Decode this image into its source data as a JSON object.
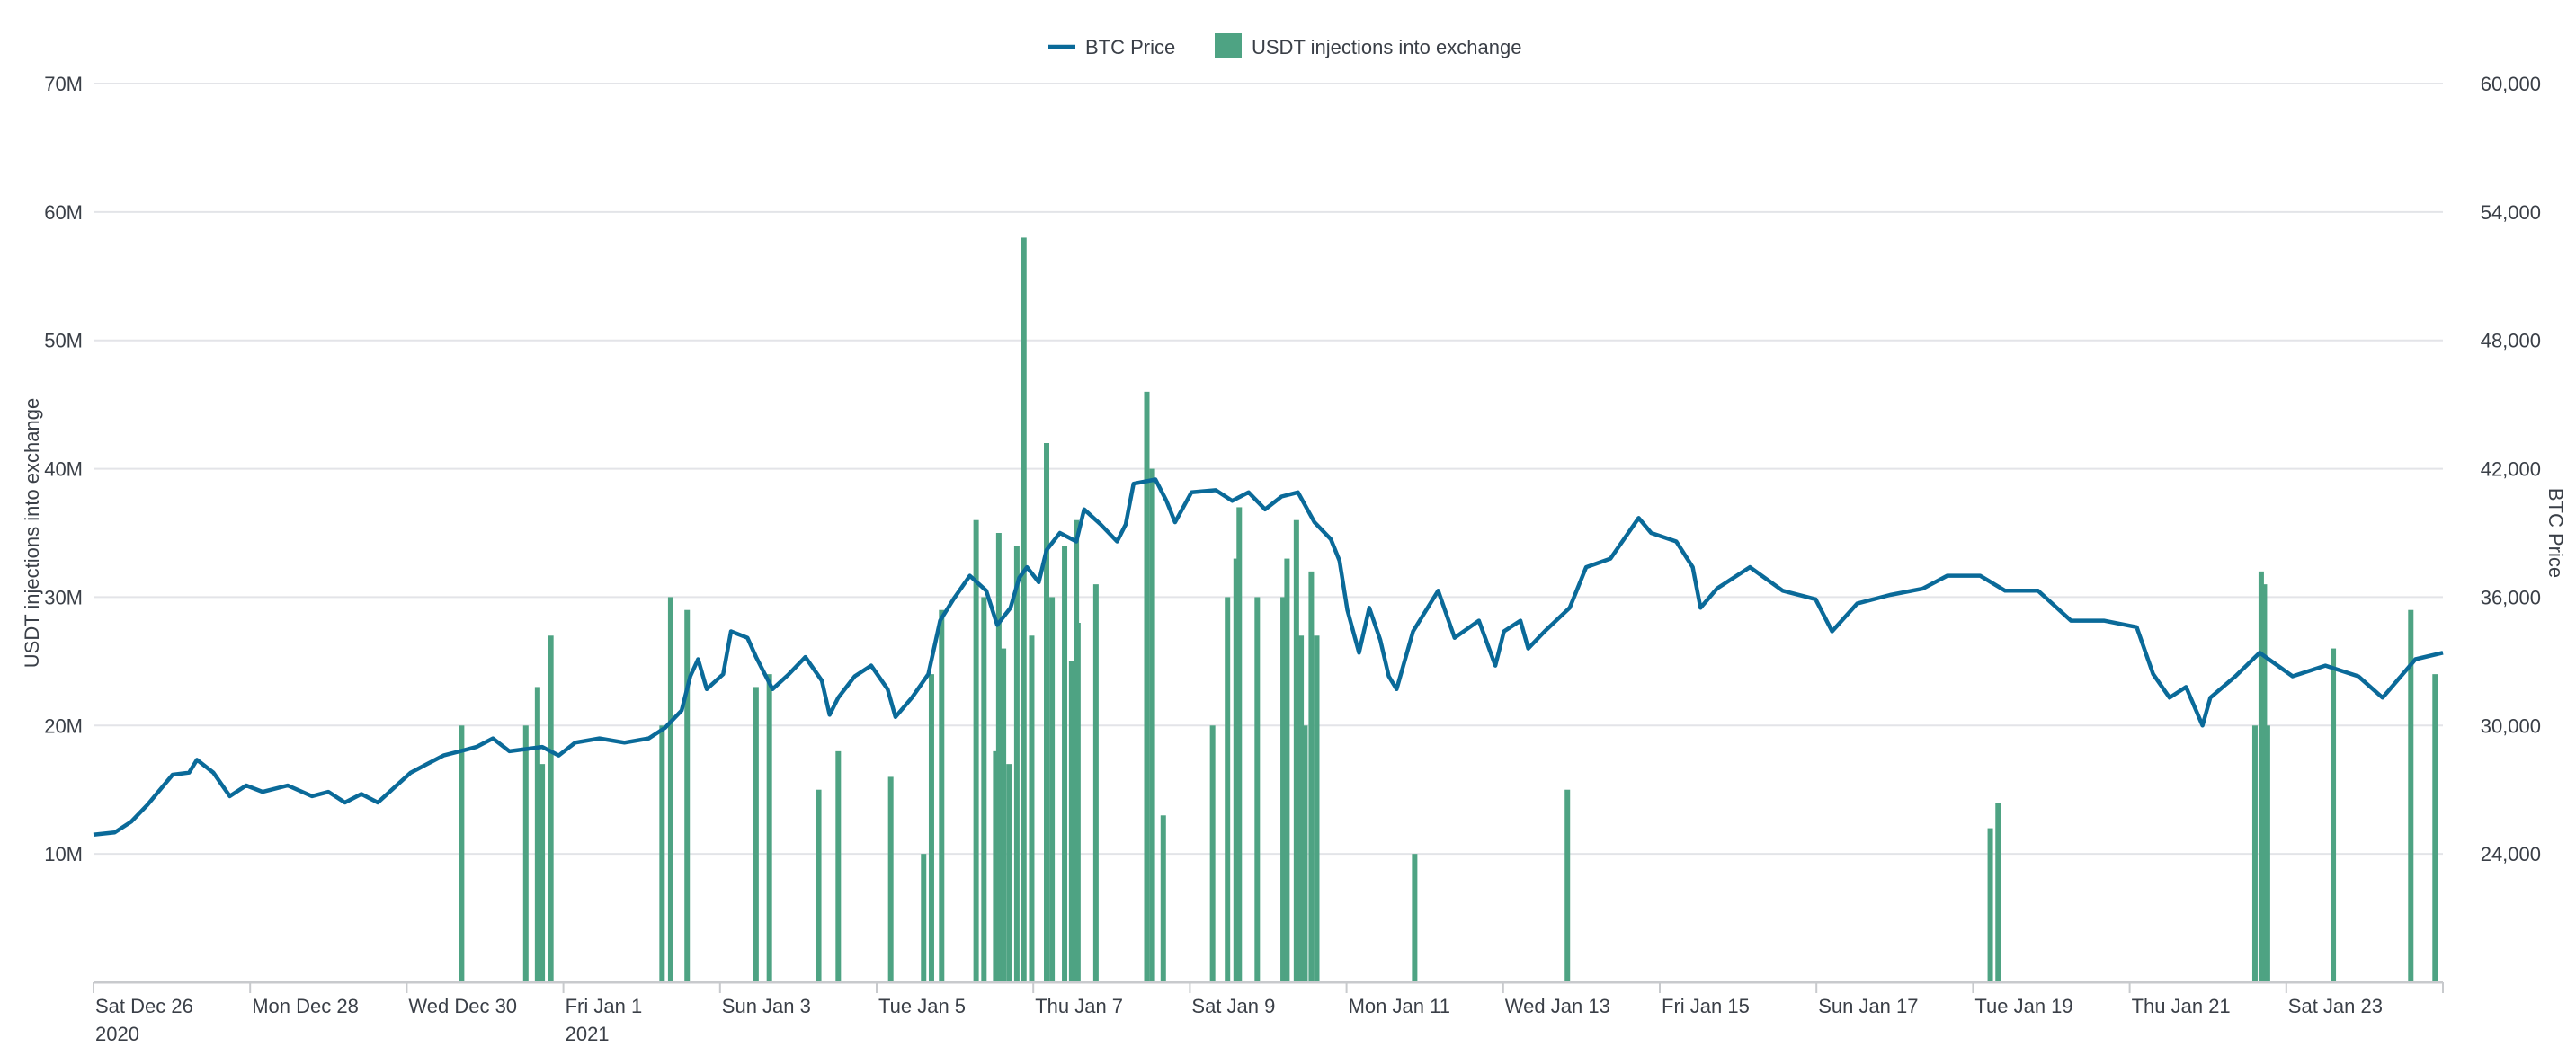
{
  "chart_data": {
    "type": "bar+line",
    "legend": {
      "placement": "top-center",
      "items": [
        {
          "name": "BTC Price",
          "kind": "line",
          "color": "#0a6a99"
        },
        {
          "name": "USDT injections into exchange",
          "kind": "bar",
          "color": "#4ea383"
        }
      ]
    },
    "left_axis": {
      "label": "USDT injections into exchange",
      "range": [
        0,
        70000000
      ],
      "ticks": [
        {
          "v": 10000000,
          "t": "10M"
        },
        {
          "v": 20000000,
          "t": "20M"
        },
        {
          "v": 30000000,
          "t": "30M"
        },
        {
          "v": 40000000,
          "t": "40M"
        },
        {
          "v": 50000000,
          "t": "50M"
        },
        {
          "v": 60000000,
          "t": "60M"
        },
        {
          "v": 70000000,
          "t": "70M"
        }
      ]
    },
    "right_axis": {
      "label": "BTC Price",
      "range": [
        18000,
        60000
      ],
      "ticks": [
        {
          "v": 24000,
          "t": "24,000"
        },
        {
          "v": 30000,
          "t": "30,000"
        },
        {
          "v": 36000,
          "t": "36,000"
        },
        {
          "v": 42000,
          "t": "42,000"
        },
        {
          "v": 48000,
          "t": "48,000"
        },
        {
          "v": 54000,
          "t": "54,000"
        },
        {
          "v": 60000,
          "t": "60,000"
        }
      ]
    },
    "x_axis": {
      "unit": "days since Sat Dec 26 2020",
      "range": [
        0,
        30
      ],
      "ticks": [
        {
          "d": 0,
          "t": "Sat Dec 26",
          "t2": "2020"
        },
        {
          "d": 2,
          "t": "Mon Dec 28"
        },
        {
          "d": 4,
          "t": "Wed Dec 30"
        },
        {
          "d": 6,
          "t": "Fri Jan 1",
          "t2": "2021"
        },
        {
          "d": 8,
          "t": "Sun Jan 3"
        },
        {
          "d": 10,
          "t": "Tue Jan 5"
        },
        {
          "d": 12,
          "t": "Thu Jan 7"
        },
        {
          "d": 14,
          "t": "Sat Jan 9"
        },
        {
          "d": 16,
          "t": "Mon Jan 11"
        },
        {
          "d": 18,
          "t": "Wed Jan 13"
        },
        {
          "d": 20,
          "t": "Fri Jan 15"
        },
        {
          "d": 22,
          "t": "Sun Jan 17"
        },
        {
          "d": 24,
          "t": "Tue Jan 19"
        },
        {
          "d": 26,
          "t": "Thu Jan 21"
        },
        {
          "d": 28,
          "t": "Sat Jan 23"
        },
        {
          "d": 30,
          "t": ""
        }
      ]
    },
    "grid": true,
    "btc_price": [
      [
        0,
        24900
      ],
      [
        0.27,
        25000
      ],
      [
        0.48,
        25500
      ],
      [
        0.69,
        26300
      ],
      [
        1.01,
        27700
      ],
      [
        1.22,
        27800
      ],
      [
        1.32,
        28400
      ],
      [
        1.53,
        27800
      ],
      [
        1.74,
        26700
      ],
      [
        1.95,
        27200
      ],
      [
        2.16,
        26900
      ],
      [
        2.48,
        27200
      ],
      [
        2.79,
        26700
      ],
      [
        3.0,
        26900
      ],
      [
        3.21,
        26400
      ],
      [
        3.42,
        26800
      ],
      [
        3.63,
        26400
      ],
      [
        3.84,
        27100
      ],
      [
        4.05,
        27800
      ],
      [
        4.26,
        28200
      ],
      [
        4.47,
        28600
      ],
      [
        4.68,
        28800
      ],
      [
        4.89,
        29000
      ],
      [
        5.1,
        29400
      ],
      [
        5.31,
        28800
      ],
      [
        5.73,
        29000
      ],
      [
        5.94,
        28600
      ],
      [
        6.15,
        29200
      ],
      [
        6.46,
        29400
      ],
      [
        6.78,
        29200
      ],
      [
        7.09,
        29400
      ],
      [
        7.3,
        29900
      ],
      [
        7.51,
        30700
      ],
      [
        7.62,
        32300
      ],
      [
        7.72,
        33100
      ],
      [
        7.83,
        31700
      ],
      [
        8.04,
        32400
      ],
      [
        8.14,
        34400
      ],
      [
        8.35,
        34100
      ],
      [
        8.46,
        33200
      ],
      [
        8.67,
        31700
      ],
      [
        8.88,
        32400
      ],
      [
        9.09,
        33200
      ],
      [
        9.3,
        32100
      ],
      [
        9.4,
        30500
      ],
      [
        9.51,
        31300
      ],
      [
        9.72,
        32300
      ],
      [
        9.93,
        32800
      ],
      [
        10.14,
        31700
      ],
      [
        10.24,
        30400
      ],
      [
        10.45,
        31300
      ],
      [
        10.66,
        32400
      ],
      [
        10.81,
        34900
      ],
      [
        10.98,
        35900
      ],
      [
        11.19,
        37000
      ],
      [
        11.4,
        36300
      ],
      [
        11.54,
        34700
      ],
      [
        11.71,
        35500
      ],
      [
        11.82,
        36900
      ],
      [
        11.92,
        37400
      ],
      [
        12.07,
        36700
      ],
      [
        12.17,
        38200
      ],
      [
        12.34,
        39000
      ],
      [
        12.55,
        38600
      ],
      [
        12.65,
        40100
      ],
      [
        12.86,
        39400
      ],
      [
        13.07,
        38600
      ],
      [
        13.18,
        39400
      ],
      [
        13.28,
        41300
      ],
      [
        13.56,
        41500
      ],
      [
        13.7,
        40500
      ],
      [
        13.81,
        39500
      ],
      [
        14.02,
        40900
      ],
      [
        14.33,
        41000
      ],
      [
        14.54,
        40500
      ],
      [
        14.75,
        40900
      ],
      [
        14.96,
        40100
      ],
      [
        15.17,
        40700
      ],
      [
        15.38,
        40900
      ],
      [
        15.59,
        39500
      ],
      [
        15.8,
        38700
      ],
      [
        15.91,
        37700
      ],
      [
        16.01,
        35400
      ],
      [
        16.16,
        33400
      ],
      [
        16.29,
        35500
      ],
      [
        16.43,
        34000
      ],
      [
        16.54,
        32300
      ],
      [
        16.64,
        31700
      ],
      [
        16.85,
        34400
      ],
      [
        17.17,
        36300
      ],
      [
        17.38,
        34100
      ],
      [
        17.69,
        34900
      ],
      [
        17.9,
        32800
      ],
      [
        18.01,
        34400
      ],
      [
        18.22,
        34900
      ],
      [
        18.32,
        33600
      ],
      [
        18.53,
        34400
      ],
      [
        18.85,
        35500
      ],
      [
        19.06,
        37400
      ],
      [
        19.37,
        37800
      ],
      [
        19.73,
        39700
      ],
      [
        19.89,
        39000
      ],
      [
        20.21,
        38600
      ],
      [
        20.42,
        37400
      ],
      [
        20.52,
        35500
      ],
      [
        20.73,
        36400
      ],
      [
        21.15,
        37400
      ],
      [
        21.57,
        36300
      ],
      [
        21.99,
        35900
      ],
      [
        22.2,
        34400
      ],
      [
        22.52,
        35700
      ],
      [
        22.94,
        36100
      ],
      [
        23.36,
        36400
      ],
      [
        23.67,
        37000
      ],
      [
        24.09,
        37000
      ],
      [
        24.41,
        36300
      ],
      [
        24.83,
        36300
      ],
      [
        25.25,
        34900
      ],
      [
        25.67,
        34900
      ],
      [
        26.09,
        34600
      ],
      [
        26.3,
        32400
      ],
      [
        26.51,
        31300
      ],
      [
        26.72,
        31800
      ],
      [
        26.93,
        30000
      ],
      [
        27.03,
        31300
      ],
      [
        27.35,
        32300
      ],
      [
        27.66,
        33400
      ],
      [
        28.08,
        32300
      ],
      [
        28.5,
        32800
      ],
      [
        28.92,
        32300
      ],
      [
        29.23,
        31300
      ],
      [
        29.65,
        33100
      ],
      [
        30.0,
        33400
      ]
    ],
    "usdt_injections": [
      [
        4.7,
        20000000
      ],
      [
        5.52,
        20000000
      ],
      [
        5.67,
        23000000
      ],
      [
        5.73,
        17000000
      ],
      [
        5.84,
        27000000
      ],
      [
        7.26,
        20000000
      ],
      [
        7.37,
        30000000
      ],
      [
        7.58,
        29000000
      ],
      [
        8.46,
        23000000
      ],
      [
        8.63,
        24000000
      ],
      [
        9.26,
        15000000
      ],
      [
        9.51,
        18000000
      ],
      [
        10.18,
        16000000
      ],
      [
        10.6,
        10000000
      ],
      [
        10.7,
        24000000
      ],
      [
        10.83,
        29000000
      ],
      [
        11.27,
        36000000
      ],
      [
        11.37,
        30000000
      ],
      [
        11.52,
        18000000
      ],
      [
        11.56,
        35000000
      ],
      [
        11.62,
        26000000
      ],
      [
        11.69,
        17000000
      ],
      [
        11.79,
        34000000
      ],
      [
        11.88,
        58000000
      ],
      [
        11.98,
        27000000
      ],
      [
        12.17,
        42000000
      ],
      [
        12.24,
        30000000
      ],
      [
        12.4,
        34000000
      ],
      [
        12.49,
        25000000
      ],
      [
        12.55,
        36000000
      ],
      [
        12.57,
        28000000
      ],
      [
        12.8,
        31000000
      ],
      [
        13.45,
        46000000
      ],
      [
        13.52,
        40000000
      ],
      [
        13.66,
        13000000
      ],
      [
        14.29,
        20000000
      ],
      [
        14.48,
        30000000
      ],
      [
        14.59,
        33000000
      ],
      [
        14.63,
        37000000
      ],
      [
        14.86,
        30000000
      ],
      [
        15.19,
        30000000
      ],
      [
        15.24,
        33000000
      ],
      [
        15.36,
        36000000
      ],
      [
        15.42,
        27000000
      ],
      [
        15.47,
        20000000
      ],
      [
        15.55,
        32000000
      ],
      [
        15.62,
        27000000
      ],
      [
        16.87,
        10000000
      ],
      [
        18.82,
        15000000
      ],
      [
        24.22,
        12000000
      ],
      [
        24.32,
        14000000
      ],
      [
        27.6,
        20000000
      ],
      [
        27.68,
        32000000
      ],
      [
        27.72,
        31000000
      ],
      [
        27.76,
        20000000
      ],
      [
        28.6,
        26000000
      ],
      [
        29.59,
        29000000
      ],
      [
        29.9,
        24000000
      ]
    ]
  }
}
